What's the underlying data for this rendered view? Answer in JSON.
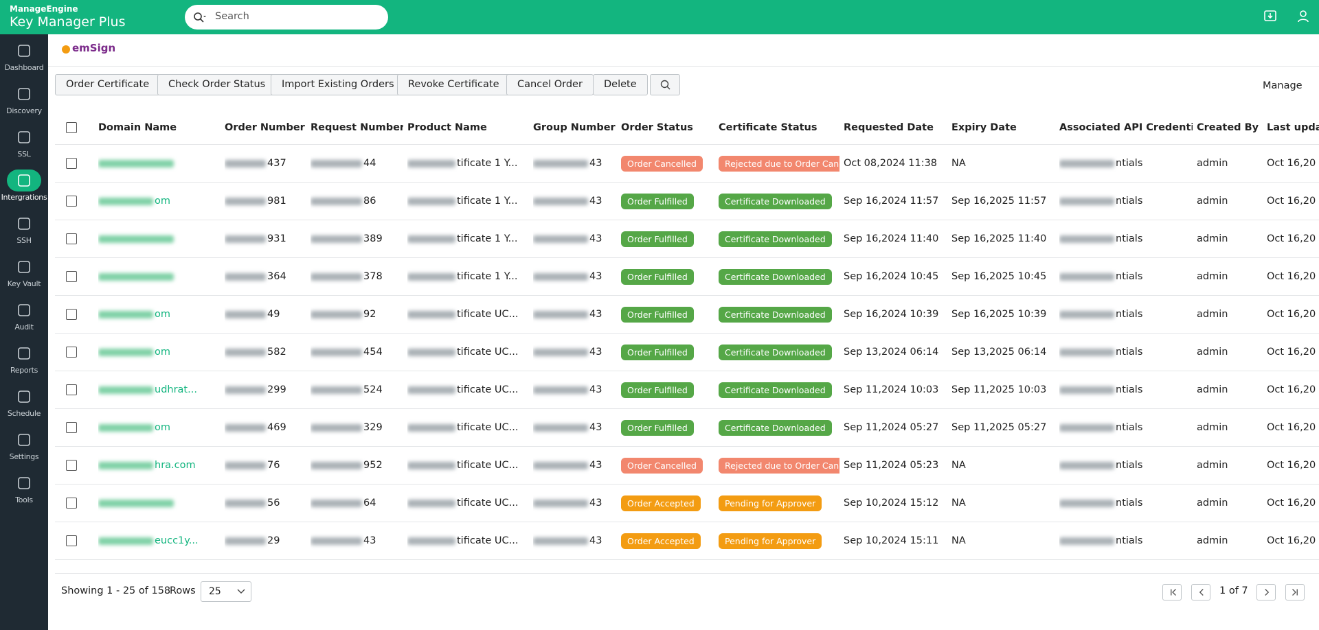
{
  "header": {
    "brand_small": "ManageEngine",
    "brand": "Key Manager Plus",
    "search_placeholder": "Search"
  },
  "sidebar": [
    "Dashboard",
    "Discovery",
    "SSL",
    "Intergrations",
    "SSH",
    "Key Vault",
    "Audit",
    "Reports",
    "Schedule",
    "Settings",
    "Tools"
  ],
  "sidebar_active": 3,
  "logo": "emSign",
  "toolbar": {
    "buttons": [
      "Order Certificate",
      "Check Order Status",
      "Import Existing Orders",
      "Revoke Certificate",
      "Cancel Order",
      "Delete"
    ],
    "manage": "Manage"
  },
  "table": {
    "columns": [
      "Domain Name",
      "Order Number",
      "Request Number",
      "Product Name",
      "Group Number",
      "Order Status",
      "Certificate Status",
      "Requested Date",
      "Expiry Date",
      "Associated API Credential",
      "Created By",
      "Last updated"
    ],
    "rows": [
      {
        "domain": null,
        "order_no": "437",
        "request_no": "44",
        "product": "tificate 1 Y...",
        "group": "43",
        "order_status": {
          "label": "Order Cancelled",
          "color": "#f2876e"
        },
        "cert_status": {
          "label": "Rejected due to Order Cancel",
          "color": "#f2876e"
        },
        "requested": "Oct 08,2024 11:38",
        "expiry": "NA",
        "credential": "ntials",
        "created_by": "admin",
        "last_updated": "Oct 16,20"
      },
      {
        "domain": "om",
        "order_no": "981",
        "request_no": "86",
        "product": "tificate 1 Y...",
        "group": "43",
        "order_status": {
          "label": "Order Fulfilled",
          "color": "#55a747"
        },
        "cert_status": {
          "label": "Certificate Downloaded",
          "color": "#55a747"
        },
        "requested": "Sep 16,2024 11:57",
        "expiry": "Sep 16,2025 11:57",
        "credential": "ntials",
        "created_by": "admin",
        "last_updated": "Oct 16,20"
      },
      {
        "domain": null,
        "order_no": "931",
        "request_no": "389",
        "product": "tificate 1 Y...",
        "group": "43",
        "order_status": {
          "label": "Order Fulfilled",
          "color": "#55a747"
        },
        "cert_status": {
          "label": "Certificate Downloaded",
          "color": "#55a747"
        },
        "requested": "Sep 16,2024 11:40",
        "expiry": "Sep 16,2025 11:40",
        "credential": "ntials",
        "created_by": "admin",
        "last_updated": "Oct 16,20"
      },
      {
        "domain": null,
        "order_no": "364",
        "request_no": "378",
        "product": "tificate 1 Y...",
        "group": "43",
        "order_status": {
          "label": "Order Fulfilled",
          "color": "#55a747"
        },
        "cert_status": {
          "label": "Certificate Downloaded",
          "color": "#55a747"
        },
        "requested": "Sep 16,2024 10:45",
        "expiry": "Sep 16,2025 10:45",
        "credential": "ntials",
        "created_by": "admin",
        "last_updated": "Oct 16,20"
      },
      {
        "domain": "om",
        "order_no": "49",
        "request_no": "92",
        "product": "tificate UC...",
        "group": "43",
        "order_status": {
          "label": "Order Fulfilled",
          "color": "#55a747"
        },
        "cert_status": {
          "label": "Certificate Downloaded",
          "color": "#55a747"
        },
        "requested": "Sep 16,2024 10:39",
        "expiry": "Sep 16,2025 10:39",
        "credential": "ntials",
        "created_by": "admin",
        "last_updated": "Oct 16,20"
      },
      {
        "domain": "om",
        "order_no": "582",
        "request_no": "454",
        "product": "tificate UC...",
        "group": "43",
        "order_status": {
          "label": "Order Fulfilled",
          "color": "#55a747"
        },
        "cert_status": {
          "label": "Certificate Downloaded",
          "color": "#55a747"
        },
        "requested": "Sep 13,2024 06:14",
        "expiry": "Sep 13,2025 06:14",
        "credential": "ntials",
        "created_by": "admin",
        "last_updated": "Oct 16,20"
      },
      {
        "domain": "udhrat...",
        "order_no": "299",
        "request_no": "524",
        "product": "tificate UC...",
        "group": "43",
        "order_status": {
          "label": "Order Fulfilled",
          "color": "#55a747"
        },
        "cert_status": {
          "label": "Certificate Downloaded",
          "color": "#55a747"
        },
        "requested": "Sep 11,2024 10:03",
        "expiry": "Sep 11,2025 10:03",
        "credential": "ntials",
        "created_by": "admin",
        "last_updated": "Oct 16,20"
      },
      {
        "domain": "om",
        "order_no": "469",
        "request_no": "329",
        "product": "tificate UC...",
        "group": "43",
        "order_status": {
          "label": "Order Fulfilled",
          "color": "#55a747"
        },
        "cert_status": {
          "label": "Certificate Downloaded",
          "color": "#55a747"
        },
        "requested": "Sep 11,2024 05:27",
        "expiry": "Sep 11,2025 05:27",
        "credential": "ntials",
        "created_by": "admin",
        "last_updated": "Oct 16,20"
      },
      {
        "domain": "hra.com",
        "order_no": "76",
        "request_no": "952",
        "product": "tificate UC...",
        "group": "43",
        "order_status": {
          "label": "Order Cancelled",
          "color": "#f2876e"
        },
        "cert_status": {
          "label": "Rejected due to Order Cancel",
          "color": "#f2876e"
        },
        "requested": "Sep 11,2024 05:23",
        "expiry": "NA",
        "credential": "ntials",
        "created_by": "admin",
        "last_updated": "Oct 16,20"
      },
      {
        "domain": null,
        "order_no": "56",
        "request_no": "64",
        "product": "tificate UC...",
        "group": "43",
        "order_status": {
          "label": "Order Accepted",
          "color": "#f39c12"
        },
        "cert_status": {
          "label": "Pending for Approver",
          "color": "#f39c12"
        },
        "requested": "Sep 10,2024 15:12",
        "expiry": "NA",
        "credential": "ntials",
        "created_by": "admin",
        "last_updated": "Oct 16,20"
      },
      {
        "domain": "eucc1y...",
        "order_no": "29",
        "request_no": "43",
        "product": "tificate UC...",
        "group": "43",
        "order_status": {
          "label": "Order Accepted",
          "color": "#f39c12"
        },
        "cert_status": {
          "label": "Pending for Approver",
          "color": "#f39c12"
        },
        "requested": "Sep 10,2024 15:11",
        "expiry": "NA",
        "credential": "ntials",
        "created_by": "admin",
        "last_updated": "Oct 16,20"
      }
    ]
  },
  "footer": {
    "showing": "Showing 1 - 25 of 158",
    "rows_label": "Rows",
    "rows_value": "25",
    "page": "1 of 7"
  }
}
